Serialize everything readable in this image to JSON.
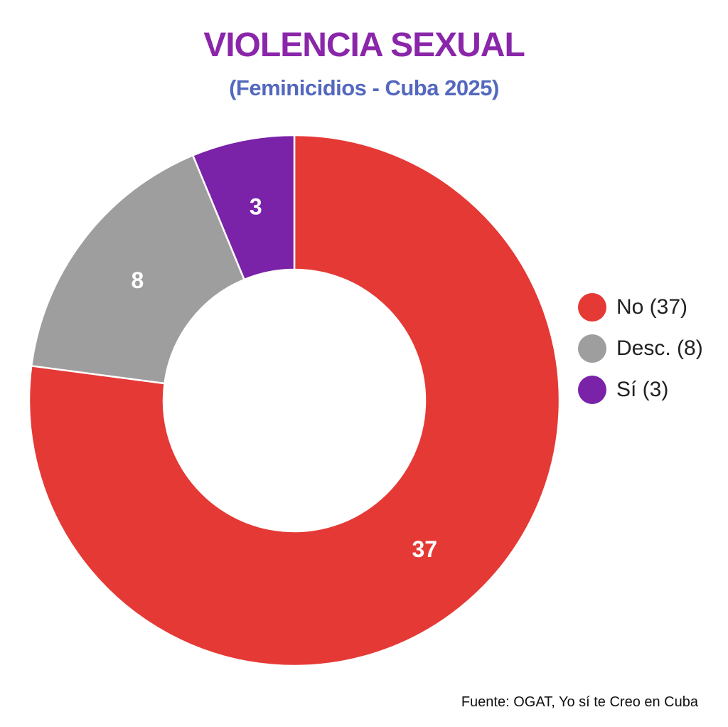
{
  "title": "VIOLENCIA SEXUAL",
  "subtitle": "(Feminicidios - Cuba 2025)",
  "source": "Fuente: OGAT, Yo sí te Creo en Cuba",
  "colors": {
    "background": "#FFFFFF",
    "title": "#8A26A9",
    "subtitle": "#5468BE",
    "slice_label": "#FFFFFF",
    "legend_text": "#212121",
    "source_text": "#111111",
    "slice_separator": "#FFFFFF"
  },
  "chart_data": {
    "type": "pie",
    "title": "VIOLENCIA SEXUAL",
    "subtitle": "(Feminicidios - Cuba 2025)",
    "donut": true,
    "inner_radius_ratio": 0.49,
    "start_angle_deg": 0,
    "direction": "clockwise",
    "legend_position": "right",
    "total": 48,
    "series": [
      {
        "label": "No",
        "value": 37,
        "color": "#E53935",
        "legend_label": "No (37)",
        "slice_label": "37"
      },
      {
        "label": "Desc.",
        "value": 8,
        "color": "#9E9E9E",
        "legend_label": "Desc. (8)",
        "slice_label": "8"
      },
      {
        "label": "Si",
        "value": 3,
        "color": "#7A22A8",
        "legend_label": "Sí (3)",
        "slice_label": "3"
      }
    ],
    "source": "Fuente: OGAT, Yo sí te Creo en Cuba"
  }
}
